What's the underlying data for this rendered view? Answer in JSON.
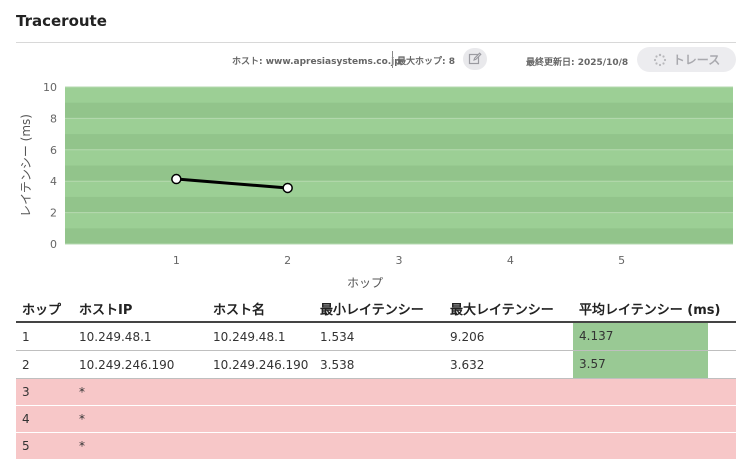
{
  "page": {
    "title": "Traceroute"
  },
  "toolbar": {
    "host": "ホスト: www.apresiasystems.co.jp",
    "max_hops": "最大ホップ: 8",
    "updated": "最終更新日: 2025/10/8",
    "trace_label": "トレース",
    "edit_icon": "edit-icon",
    "spinner_icon": "spinner-icon"
  },
  "chart_data": {
    "type": "line",
    "xlabel": "ホップ",
    "ylabel": "レイテンシー (ms)",
    "x_ticks": [
      1,
      2,
      3,
      4,
      5
    ],
    "y_ticks": [
      0,
      2,
      4,
      6,
      8,
      10
    ],
    "xlim": [
      0,
      6
    ],
    "ylim": [
      0,
      10
    ],
    "series": [
      {
        "x": [
          1,
          2
        ],
        "y": [
          4.137,
          3.57
        ]
      }
    ],
    "colors": {
      "plot_background": "#92c48b",
      "band_light": "#9ccf95",
      "line": "#000000",
      "marker_fill": "#ffffff"
    }
  },
  "table": {
    "headers": [
      "ホップ",
      "ホストIP",
      "ホスト名",
      "最小レイテンシー",
      "最大レイテンシー",
      "平均レイテンシー (ms)"
    ],
    "rows": [
      {
        "hop": "1",
        "ip": "10.249.48.1",
        "host": "10.249.48.1",
        "min": "1.534",
        "max": "9.206",
        "avg": "4.137",
        "status": "ok"
      },
      {
        "hop": "2",
        "ip": "10.249.246.190",
        "host": "10.249.246.190",
        "min": "3.538",
        "max": "3.632",
        "avg": "3.57",
        "status": "ok"
      },
      {
        "hop": "3",
        "ip": "*",
        "host": "",
        "min": "",
        "max": "",
        "avg": "",
        "status": "timeout"
      },
      {
        "hop": "4",
        "ip": "*",
        "host": "",
        "min": "",
        "max": "",
        "avg": "",
        "status": "timeout"
      },
      {
        "hop": "5",
        "ip": "*",
        "host": "",
        "min": "",
        "max": "",
        "avg": "",
        "status": "timeout"
      }
    ]
  },
  "colors": {
    "avg_cell": "#99c994",
    "timeout_row": "#f7c7c8"
  }
}
